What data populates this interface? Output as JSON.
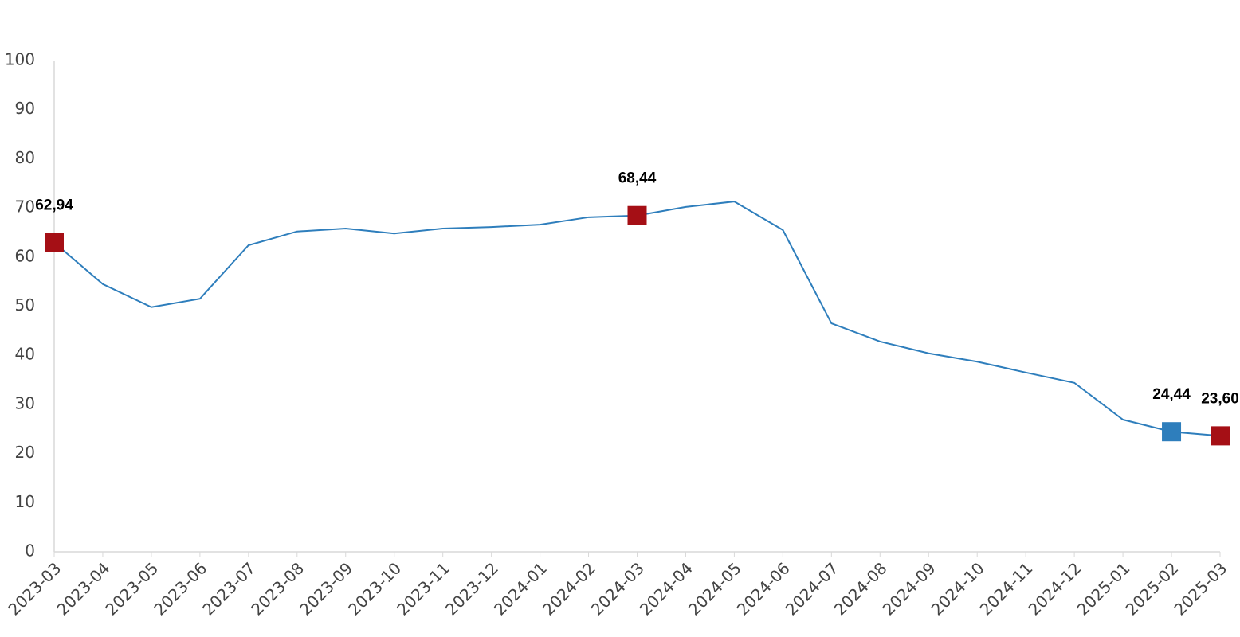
{
  "chart_data": {
    "type": "line",
    "categories": [
      "2023-03",
      "2023-04",
      "2023-05",
      "2023-06",
      "2023-07",
      "2023-08",
      "2023-09",
      "2023-10",
      "2023-11",
      "2023-12",
      "2024-01",
      "2024-02",
      "2024-03",
      "2024-04",
      "2024-05",
      "2024-06",
      "2024-07",
      "2024-08",
      "2024-09",
      "2024-10",
      "2024-11",
      "2024-12",
      "2025-01",
      "2025-02",
      "2025-03"
    ],
    "values": [
      62.94,
      54.5,
      49.8,
      51.5,
      62.4,
      65.2,
      65.8,
      64.8,
      65.8,
      66.1,
      66.6,
      68.1,
      68.44,
      70.2,
      71.3,
      65.5,
      46.5,
      42.8,
      40.4,
      38.7,
      36.5,
      34.4,
      26.9,
      24.44,
      23.6
    ],
    "value_labels": [
      "62,94",
      null,
      null,
      null,
      null,
      null,
      null,
      null,
      null,
      null,
      null,
      null,
      "68,44",
      null,
      null,
      null,
      null,
      null,
      null,
      null,
      null,
      null,
      null,
      "24,44",
      "23,60"
    ],
    "marker_colors": [
      "#a50f15",
      null,
      null,
      null,
      null,
      null,
      null,
      null,
      null,
      null,
      null,
      null,
      "#a50f15",
      null,
      null,
      null,
      null,
      null,
      null,
      null,
      null,
      null,
      null,
      "#2e7ebc",
      "#a50f15"
    ],
    "color": "#2e7ebc",
    "ylim": [
      0,
      100
    ],
    "yticks": [
      0,
      10,
      20,
      30,
      40,
      50,
      60,
      70,
      80,
      90,
      100
    ],
    "grid": false
  }
}
